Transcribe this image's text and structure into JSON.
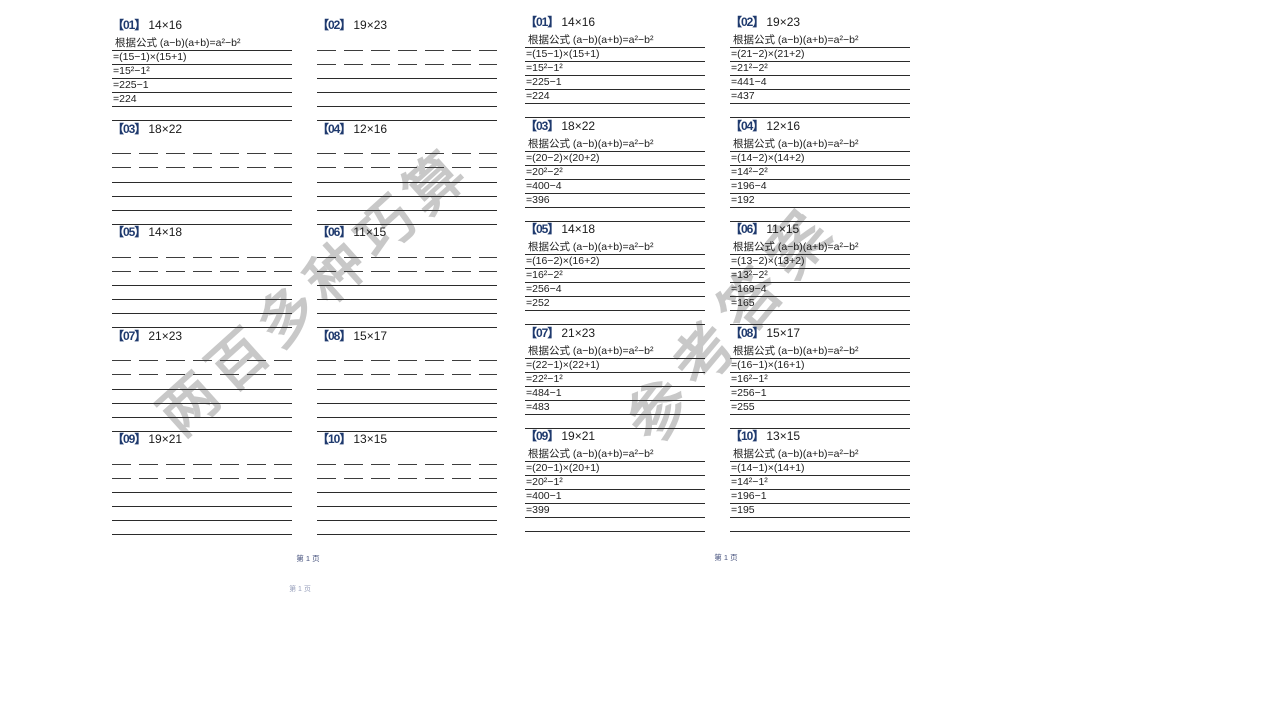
{
  "formula_line": "根据公式 (a−b)(a+b)=a²−b²",
  "watermarks": {
    "worksheet": "两百多种巧算",
    "answers": "参考答案"
  },
  "footers": {
    "left": "第 1 页",
    "right": "第 1 页",
    "ghost": "第 1 页"
  },
  "colors": {
    "label_blue": "#1f3a6e",
    "text": "#1a1a1a",
    "watermark_gray": "#c8c8c8"
  },
  "blank_line_count": 6,
  "worksheet_page": {
    "problems": [
      {
        "label": "【01】",
        "expr": "14×16",
        "solved": true,
        "steps": [
          "=(15−1)×(15+1)",
          "=15²−1²",
          "=225−1",
          "=224"
        ]
      },
      {
        "label": "【02】",
        "expr": "19×23",
        "solved": false,
        "steps": []
      },
      {
        "label": "【03】",
        "expr": "18×22",
        "solved": false,
        "steps": []
      },
      {
        "label": "【04】",
        "expr": "12×16",
        "solved": false,
        "steps": []
      },
      {
        "label": "【05】",
        "expr": "14×18",
        "solved": false,
        "steps": []
      },
      {
        "label": "【06】",
        "expr": "11×15",
        "solved": false,
        "steps": []
      },
      {
        "label": "【07】",
        "expr": "21×23",
        "solved": false,
        "steps": []
      },
      {
        "label": "【08】",
        "expr": "15×17",
        "solved": false,
        "steps": []
      },
      {
        "label": "【09】",
        "expr": "19×21",
        "solved": false,
        "steps": []
      },
      {
        "label": "【10】",
        "expr": "13×15",
        "solved": false,
        "steps": []
      }
    ]
  },
  "answers_page": {
    "problems": [
      {
        "label": "【01】",
        "expr": "14×16",
        "solved": true,
        "steps": [
          "=(15−1)×(15+1)",
          "=15²−1²",
          "=225−1",
          "=224"
        ]
      },
      {
        "label": "【02】",
        "expr": "19×23",
        "solved": true,
        "steps": [
          "=(21−2)×(21+2)",
          "=21²−2²",
          "=441−4",
          "=437"
        ]
      },
      {
        "label": "【03】",
        "expr": "18×22",
        "solved": true,
        "steps": [
          "=(20−2)×(20+2)",
          "=20²−2²",
          "=400−4",
          "=396"
        ]
      },
      {
        "label": "【04】",
        "expr": "12×16",
        "solved": true,
        "steps": [
          "=(14−2)×(14+2)",
          "=14²−2²",
          "=196−4",
          "=192"
        ]
      },
      {
        "label": "【05】",
        "expr": "14×18",
        "solved": true,
        "steps": [
          "=(16−2)×(16+2)",
          "=16²−2²",
          "=256−4",
          "=252"
        ]
      },
      {
        "label": "【06】",
        "expr": "11×15",
        "solved": true,
        "steps": [
          "=(13−2)×(13+2)",
          "=13²−2²",
          "=169−4",
          "=165"
        ]
      },
      {
        "label": "【07】",
        "expr": "21×23",
        "solved": true,
        "steps": [
          "=(22−1)×(22+1)",
          "=22²−1²",
          "=484−1",
          "=483"
        ]
      },
      {
        "label": "【08】",
        "expr": "15×17",
        "solved": true,
        "steps": [
          "=(16−1)×(16+1)",
          "=16²−1²",
          "=256−1",
          "=255"
        ]
      },
      {
        "label": "【09】",
        "expr": "19×21",
        "solved": true,
        "steps": [
          "=(20−1)×(20+1)",
          "=20²−1²",
          "=400−1",
          "=399"
        ]
      },
      {
        "label": "【10】",
        "expr": "13×15",
        "solved": true,
        "steps": [
          "=(14−1)×(14+1)",
          "=14²−1²",
          "=196−1",
          "=195"
        ]
      }
    ]
  }
}
